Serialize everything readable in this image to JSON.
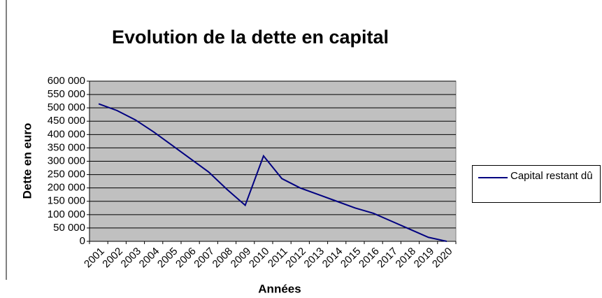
{
  "chart_data": {
    "type": "line",
    "title": "Evolution de la dette en capital",
    "x_label": "Années",
    "y_label": "Dette en euro",
    "categories": [
      "2001",
      "2002",
      "2003",
      "2004",
      "2005",
      "2006",
      "2007",
      "2008",
      "2009",
      "2010",
      "2011",
      "2012",
      "2013",
      "2014",
      "2015",
      "2016",
      "2017",
      "2018",
      "2019",
      "2020"
    ],
    "series": [
      {
        "name": "Capital restant dû",
        "color": "#000080",
        "values": [
          515000,
          490000,
          455000,
          410000,
          360000,
          310000,
          260000,
          195000,
          135000,
          320000,
          235000,
          200000,
          175000,
          150000,
          125000,
          105000,
          75000,
          45000,
          15000,
          0
        ]
      }
    ],
    "ylim": [
      0,
      600000
    ],
    "yticks": [
      0,
      {
        "value": 50000,
        "label": "50 000"
      },
      {
        "value": 100000,
        "label": "100 000"
      },
      {
        "value": 150000,
        "label": "150 000"
      },
      {
        "value": 200000,
        "label": "200 000"
      },
      {
        "value": 250000,
        "label": "250 000"
      },
      {
        "value": 300000,
        "label": "300 000"
      },
      {
        "value": 350000,
        "label": "350 000"
      },
      {
        "value": 400000,
        "label": "400 000"
      },
      {
        "value": 450000,
        "label": "450 000"
      },
      {
        "value": 500000,
        "label": "500 000"
      },
      {
        "value": 550000,
        "label": "550 000"
      },
      {
        "value": 600000,
        "label": "600 000"
      }
    ],
    "grid": true,
    "legend": "right"
  }
}
